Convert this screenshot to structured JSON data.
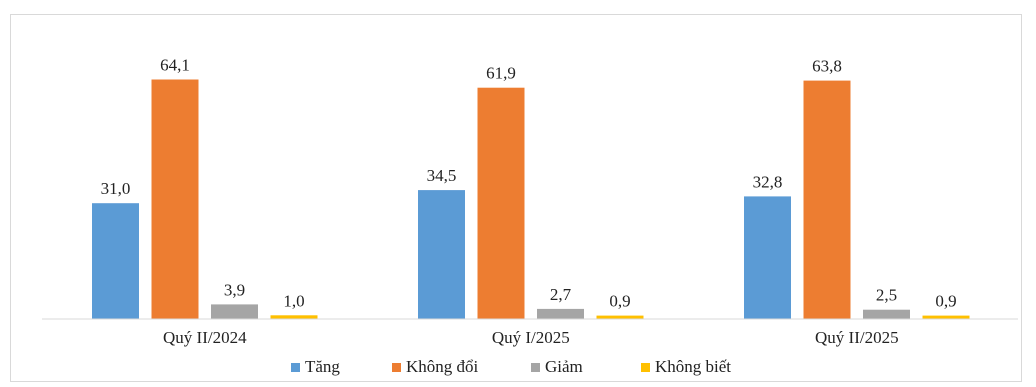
{
  "chart_data": {
    "type": "bar",
    "title": "",
    "xlabel": "",
    "ylabel": "",
    "categories": [
      "Quý II/2024",
      "Quý I/2025",
      "Quý II/2025"
    ],
    "series": [
      {
        "name": "Tăng",
        "color": "#5b9bd5",
        "values": [
          31.0,
          34.5,
          32.8
        ],
        "labels": [
          "31,0",
          "34,5",
          "32,8"
        ]
      },
      {
        "name": "Không đổi",
        "color": "#ed7d31",
        "values": [
          64.1,
          61.9,
          63.8
        ],
        "labels": [
          "64,1",
          "61,9",
          "63,8"
        ]
      },
      {
        "name": "Giảm",
        "color": "#a5a5a5",
        "values": [
          3.9,
          2.7,
          2.5
        ],
        "labels": [
          "3,9",
          "2,7",
          "2,5"
        ]
      },
      {
        "name": "Không biết",
        "color": "#ffc000",
        "values": [
          1.0,
          0.9,
          0.9
        ],
        "labels": [
          "1,0",
          "0,9",
          "0,9"
        ]
      }
    ],
    "ylim": [
      0,
      70
    ],
    "grid": false,
    "legend": "bottom"
  }
}
